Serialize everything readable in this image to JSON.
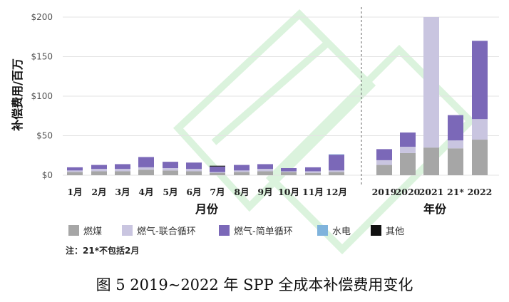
{
  "chart_data": {
    "type": "bar",
    "stacked": true,
    "ylabel": "补偿费用/百万",
    "yticks": [
      "$0",
      "$50",
      "$100",
      "$150",
      "$200"
    ],
    "ylim": [
      0,
      200
    ],
    "grid": true,
    "panels": [
      {
        "xlabel": "月份",
        "categories": [
          "1月",
          "2月",
          "3月",
          "4月",
          "5月",
          "6月",
          "7月",
          "8月",
          "9月",
          "10月",
          "11月",
          "12月"
        ]
      },
      {
        "xlabel": "年份",
        "categories": [
          "2019",
          "2020",
          "2021",
          "21*",
          "2022"
        ]
      }
    ],
    "series": [
      {
        "name": "燃煤",
        "color": "#a6a6a6",
        "values": [
          4,
          5,
          5,
          7,
          6,
          5,
          3,
          4,
          5,
          4,
          3,
          4,
          13,
          28,
          35,
          34,
          45
        ]
      },
      {
        "name": "燃气-联合循环",
        "color": "#c9c5e0",
        "values": [
          2,
          3,
          3,
          3,
          3,
          3,
          1,
          2,
          3,
          1,
          2,
          2,
          6,
          8,
          165,
          10,
          26
        ]
      },
      {
        "name": "燃气-简单循环",
        "color": "#7b68b8",
        "values": [
          4,
          5,
          6,
          13,
          8,
          8,
          7,
          7,
          6,
          4,
          5,
          20,
          14,
          18,
          0,
          32,
          99
        ]
      },
      {
        "name": "水电",
        "color": "#7fb3dc",
        "values": [
          0,
          0,
          0,
          0,
          0,
          0,
          0,
          0,
          0,
          0,
          0,
          0.5,
          0,
          0,
          0,
          0,
          0
        ]
      },
      {
        "name": "其他",
        "color": "#111111",
        "values": [
          0,
          0,
          0,
          0,
          0,
          0,
          1,
          0,
          0,
          0,
          0,
          0,
          0,
          0,
          0,
          0,
          0
        ]
      }
    ],
    "legend": {
      "placement": "bottom"
    }
  },
  "note": "注：21*不包括2月",
  "caption": "图 5 2019~2022 年 SPP 全成本补偿费用变化"
}
